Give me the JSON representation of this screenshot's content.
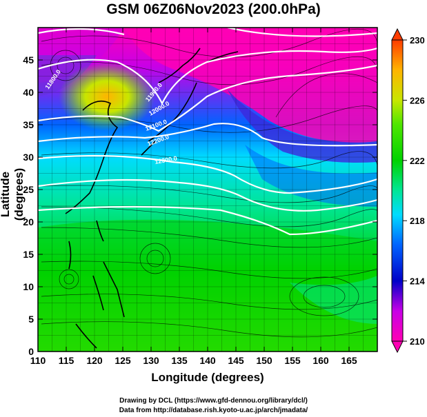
{
  "title": "GSM 06Z06Nov2023 (200.0hPa)",
  "x_axis": {
    "label": "Longitude (degrees)",
    "range": [
      110,
      170
    ],
    "ticks": [
      "110",
      "115",
      "120",
      "125",
      "130",
      "135",
      "140",
      "145",
      "150",
      "155",
      "160",
      "165"
    ]
  },
  "y_axis": {
    "label": "Latitude  (degrees)",
    "range": [
      0,
      50
    ],
    "ticks": [
      "0",
      "5",
      "10",
      "15",
      "20",
      "25",
      "30",
      "35",
      "40",
      "45"
    ]
  },
  "colorbar": {
    "ticks": [
      "210",
      "214",
      "218",
      "222",
      "226",
      "230"
    ],
    "range": [
      210,
      230
    ],
    "colors": [
      "#ff00b4",
      "#c800e6",
      "#0000c8",
      "#0064ff",
      "#00dcff",
      "#00e696",
      "#00d200",
      "#50e600",
      "#c8e600",
      "#ffb400",
      "#ff3c00"
    ]
  },
  "contour_labels": [
    "11800.0",
    "11900.0",
    "12000.0",
    "12100.0",
    "12200.0",
    "12300.0"
  ],
  "credits": [
    "Drawing by DCL (https://www.gfd-dennou.org/library/dcl/)",
    "Data from http://database.rish.kyoto-u.ac.jp/arch/jmadata/"
  ]
}
